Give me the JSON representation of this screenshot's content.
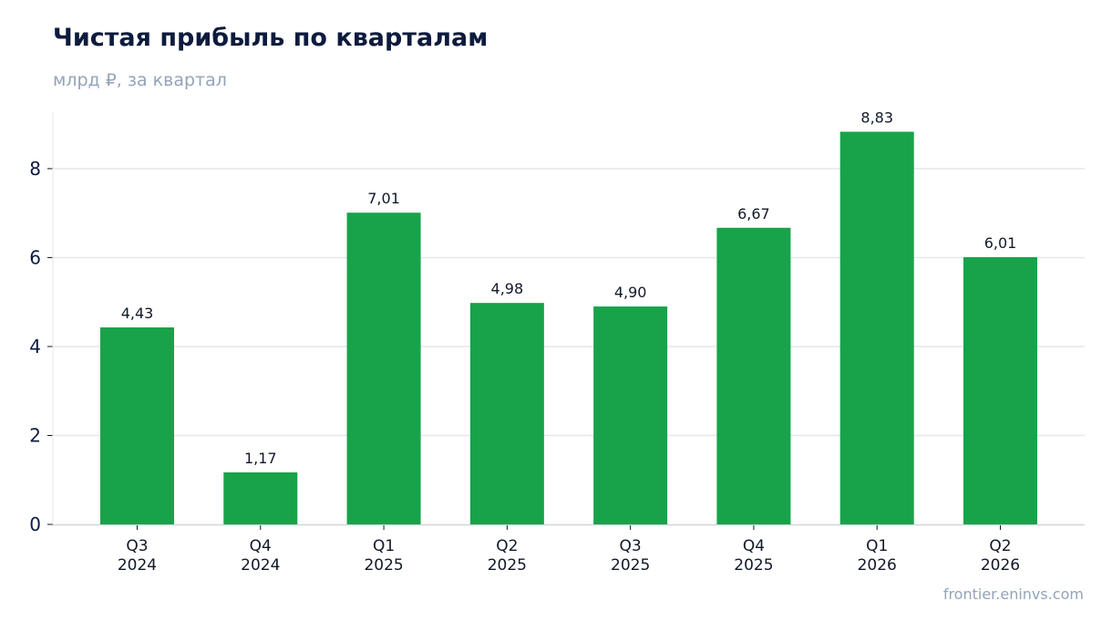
{
  "header": {
    "title": "Чистая прибыль по кварталам",
    "subtitle": "млрд ₽, за квартал"
  },
  "footer": {
    "source": "frontier.eninvs.com"
  },
  "colors": {
    "bar": "#18a34a",
    "grid": "#e5e7eb",
    "axis": "#d1d5db",
    "title": "#0d1b3e",
    "muted": "#94a3b8"
  },
  "chart_data": {
    "type": "bar",
    "title": "Чистая прибыль по кварталам",
    "subtitle": "млрд ₽, за квартал",
    "categories": [
      [
        "Q3",
        "2024"
      ],
      [
        "Q4",
        "2024"
      ],
      [
        "Q1",
        "2025"
      ],
      [
        "Q2",
        "2025"
      ],
      [
        "Q3",
        "2025"
      ],
      [
        "Q4",
        "2025"
      ],
      [
        "Q1",
        "2026"
      ],
      [
        "Q2",
        "2026"
      ]
    ],
    "values": [
      4.43,
      1.17,
      7.01,
      4.98,
      4.9,
      6.67,
      8.83,
      6.01
    ],
    "value_labels": [
      "4,43",
      "1,17",
      "7,01",
      "4,98",
      "4,90",
      "6,67",
      "8,83",
      "6,01"
    ],
    "yticks": [
      0,
      2,
      4,
      6,
      8
    ],
    "ylim": [
      0,
      9.27
    ],
    "grid": true,
    "legend": "none",
    "xlabel": "",
    "ylabel": ""
  }
}
